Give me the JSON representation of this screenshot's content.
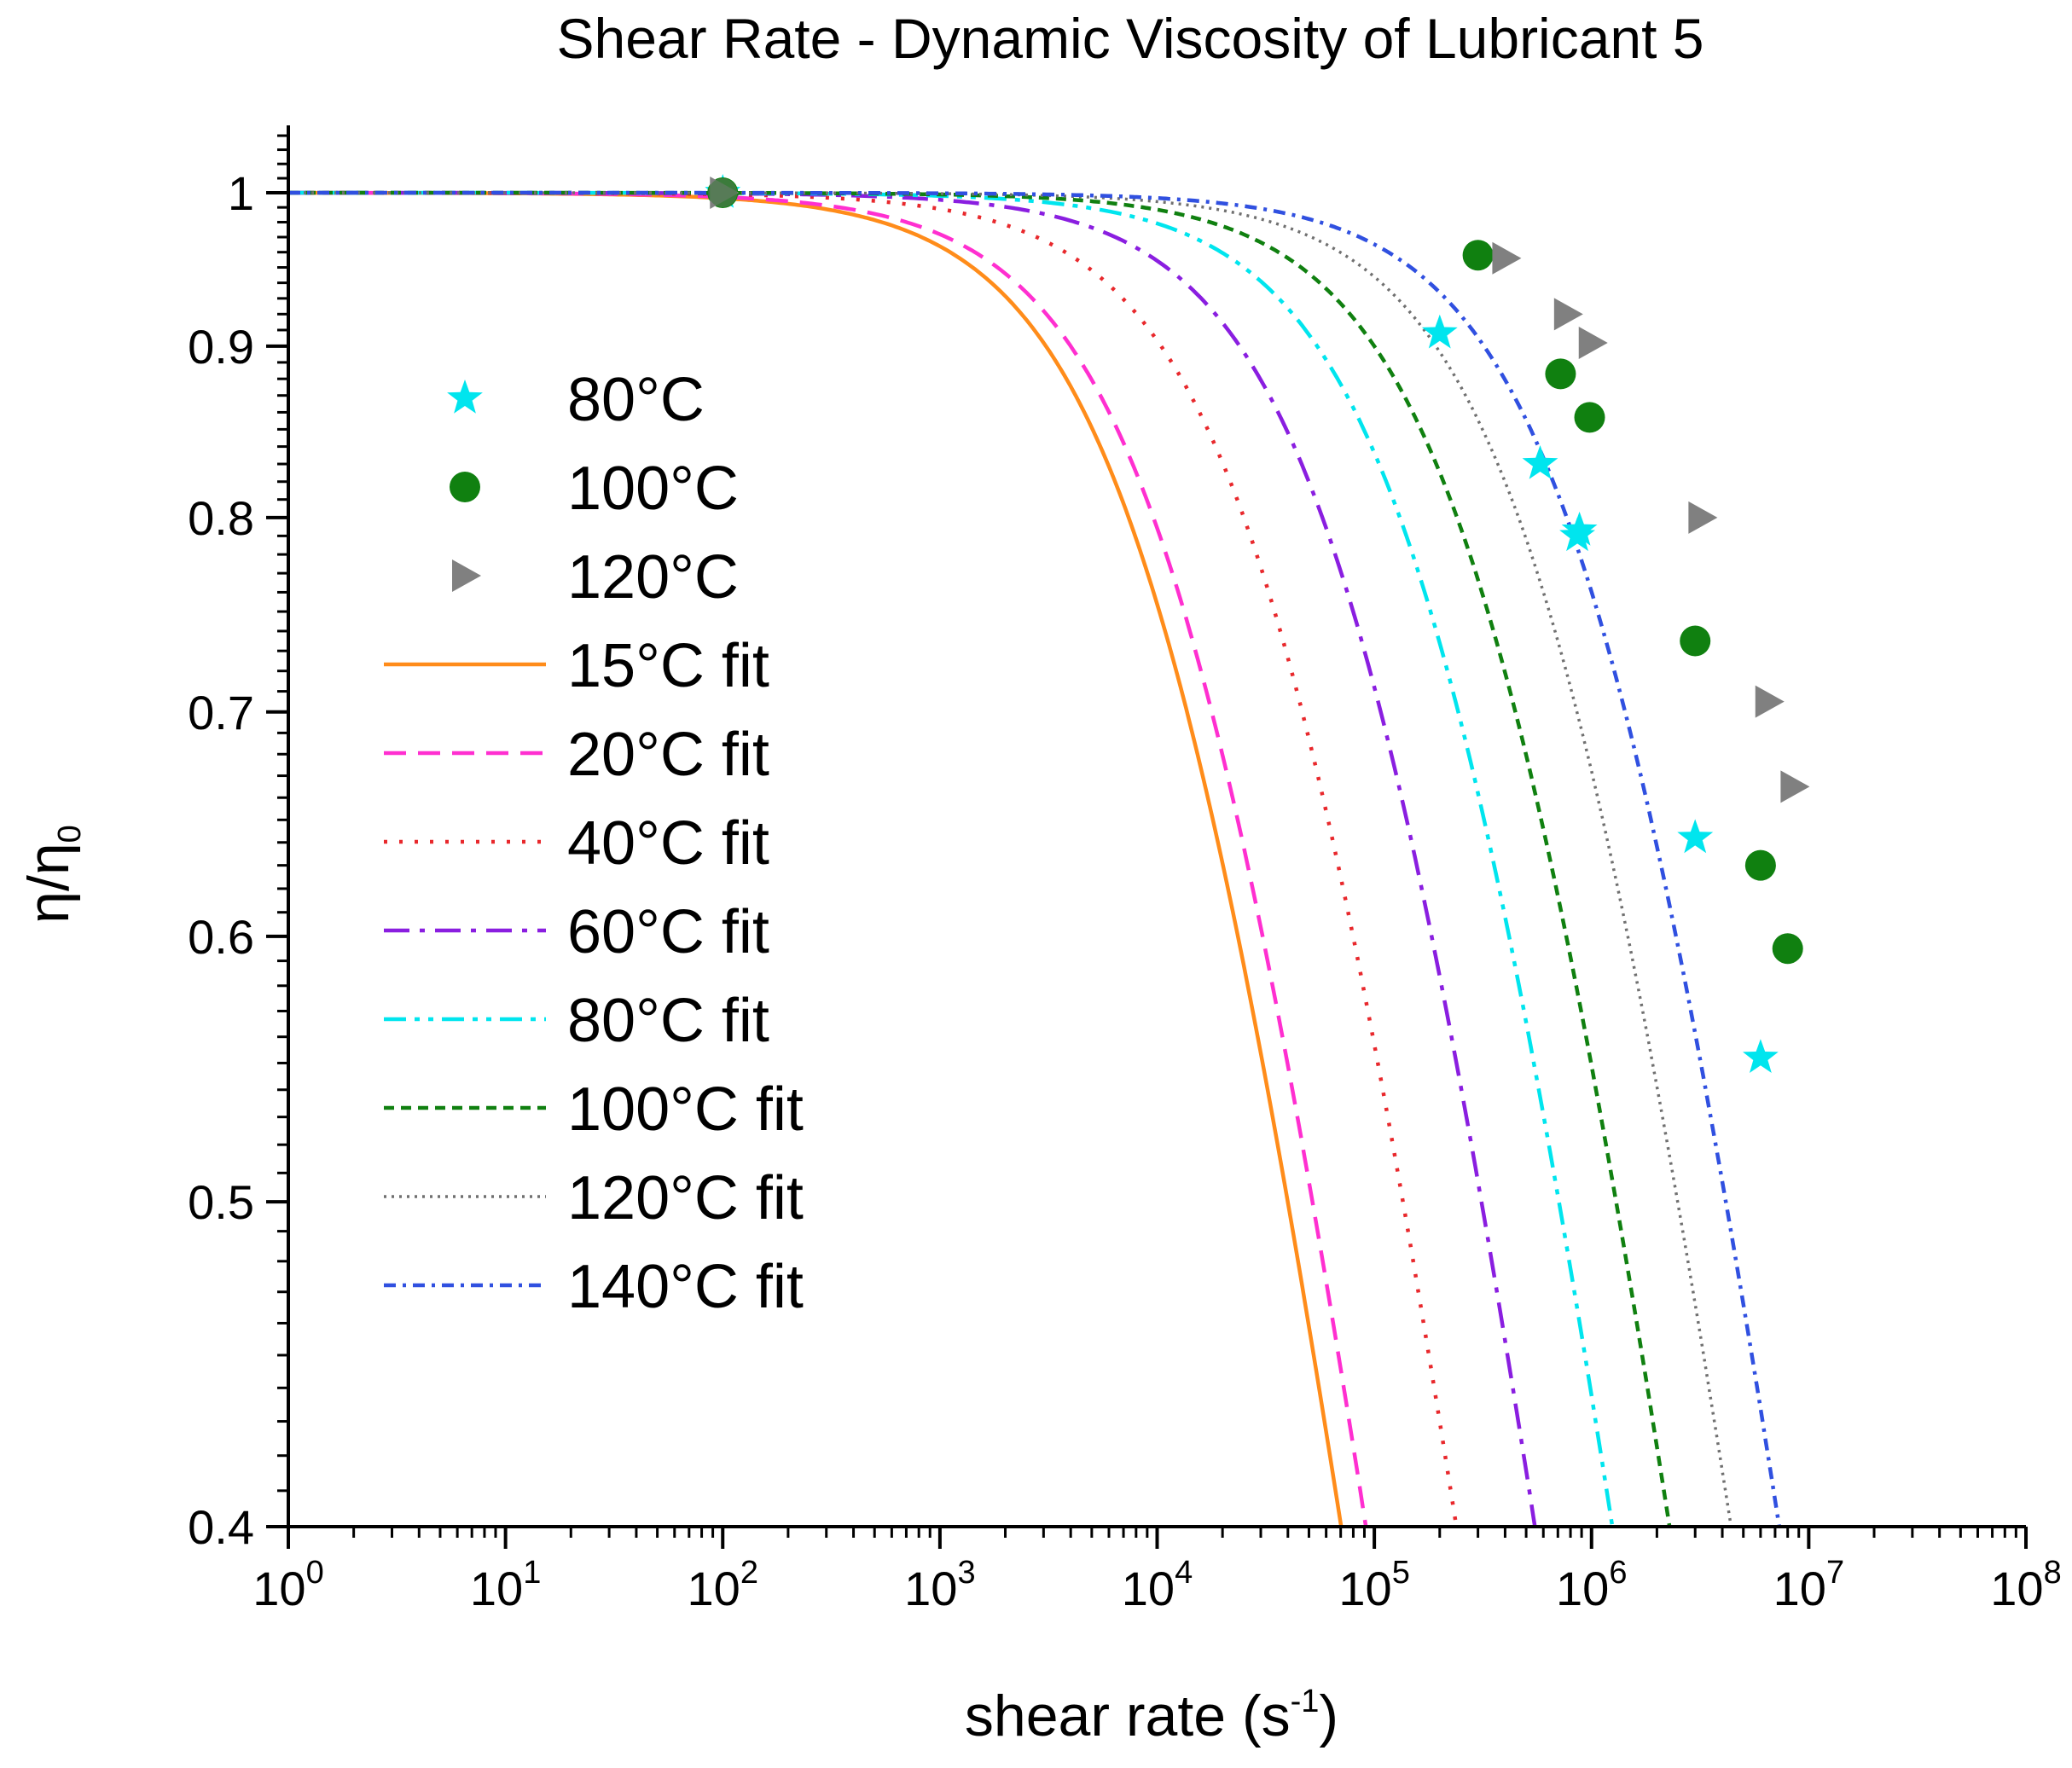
{
  "chart_data": {
    "type": "line",
    "title": "Shear Rate - Dynamic Viscosity of Lubricant 5",
    "xlabel": {
      "base": "shear rate (s",
      "sup": "-1",
      "tail": ")"
    },
    "ylabel": {
      "main": "η/η",
      "sub": "0"
    },
    "xscale": "log",
    "yscale": "log",
    "xlim": [
      1,
      100000000
    ],
    "ylim": [
      0.4,
      1.04
    ],
    "x_ticks": [
      {
        "base": "10",
        "exp": "0"
      },
      {
        "base": "10",
        "exp": "1"
      },
      {
        "base": "10",
        "exp": "2"
      },
      {
        "base": "10",
        "exp": "3"
      },
      {
        "base": "10",
        "exp": "4"
      },
      {
        "base": "10",
        "exp": "5"
      },
      {
        "base": "10",
        "exp": "6"
      },
      {
        "base": "10",
        "exp": "7"
      },
      {
        "base": "10",
        "exp": "8"
      }
    ],
    "y_ticks": [
      {
        "value": 0.4,
        "label": "0.4"
      },
      {
        "value": 0.5,
        "label": "0.5"
      },
      {
        "value": 0.6,
        "label": "0.6"
      },
      {
        "value": 0.7,
        "label": "0.7"
      },
      {
        "value": 0.8,
        "label": "0.8"
      },
      {
        "value": 0.9,
        "label": "0.9"
      },
      {
        "value": 1.0,
        "label": "1"
      }
    ],
    "legend_position": "left",
    "scatter_series": [
      {
        "name": "80°C",
        "marker": "star",
        "color": "#00e5ee",
        "points": [
          [
            100,
            1.0
          ],
          [
            200000,
            0.908
          ],
          [
            580000,
            0.83
          ],
          [
            860000,
            0.79
          ],
          [
            880000,
            0.793
          ],
          [
            3000000,
            0.642
          ],
          [
            6000000,
            0.552
          ]
        ]
      },
      {
        "name": "100°C",
        "marker": "circle",
        "color": "#108010",
        "points": [
          [
            100,
            1.0
          ],
          [
            300000,
            0.958
          ],
          [
            720000,
            0.883
          ],
          [
            980000,
            0.857
          ],
          [
            3000000,
            0.735
          ],
          [
            6000000,
            0.63
          ],
          [
            8000000,
            0.595
          ]
        ]
      },
      {
        "name": "120°C",
        "marker": "triangle-right",
        "color": "#808080",
        "points": [
          [
            100,
            1.0
          ],
          [
            400000,
            0.956
          ],
          [
            770000,
            0.92
          ],
          [
            1000000,
            0.902
          ],
          [
            3200000,
            0.8
          ],
          [
            6500000,
            0.705
          ],
          [
            8500000,
            0.665
          ]
        ]
      }
    ],
    "fit_series": [
      {
        "name": "15°C fit",
        "color": "#ff8c1a",
        "dash": "solid",
        "lambda": 7.8e-05,
        "n": 0.51,
        "xmax": 100000000
      },
      {
        "name": "20°C fit",
        "color": "#ff2fd0",
        "dash": "dashed",
        "lambda": 6e-05,
        "n": 0.51,
        "xmax": 100000000
      },
      {
        "name": "40°C fit",
        "color": "#e8282c",
        "dash": "dotted",
        "lambda": 2.3e-05,
        "n": 0.51,
        "xmax": 100000000
      },
      {
        "name": "60°C fit",
        "color": "#8a1ee0",
        "dash": "dash-dot",
        "lambda": 1e-05,
        "n": 0.51,
        "xmax": 100000000
      },
      {
        "name": "80°C fit",
        "color": "#00e5ee",
        "dash": "dash-dot-dot",
        "lambda": 4.4e-06,
        "n": 0.51,
        "xmax": 100000000
      },
      {
        "name": "100°C fit",
        "color": "#108010",
        "dash": "short-dash",
        "lambda": 2.4e-06,
        "n": 0.51,
        "xmax": 100000000
      },
      {
        "name": "120°C fit",
        "color": "#707070",
        "dash": "short-dot",
        "lambda": 1.25e-06,
        "n": 0.51,
        "xmax": 100000000
      },
      {
        "name": "140°C fit",
        "color": "#3050e0",
        "dash": "short-dash-dot",
        "lambda": 7.5e-07,
        "n": 0.51,
        "xmax": 100000000
      }
    ]
  }
}
